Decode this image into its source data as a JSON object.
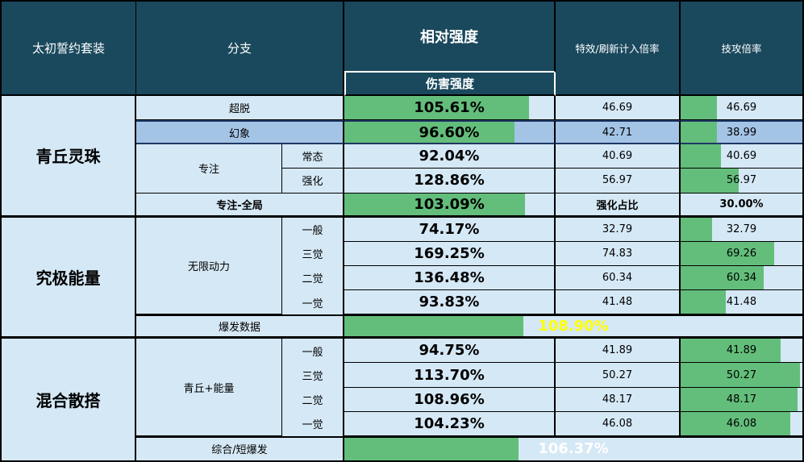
{
  "colors": {
    "header": "#1a495d",
    "light": "#d5e8f5",
    "medium": "#a4c4e6",
    "navy": "#1f3864",
    "green": "#63be7b",
    "value_yellow": "#ffff00",
    "value_white": "#ffffff"
  },
  "chart_data": {
    "type": "table",
    "header": {
      "set": "太初誓约套装",
      "branch": "分支",
      "relative": "相对强度",
      "damage": "伤害强度",
      "fx": "特效/刷新计入倍率",
      "atk": "技攻倍率"
    },
    "sections": [
      {
        "label": "青丘灵珠",
        "rows": [
          {
            "branch": "超脱",
            "rel": "105.61%",
            "rel_bar": 88,
            "fx": "46.69",
            "atk": "46.69",
            "atk_bar": 30
          },
          {
            "branch": "幻象",
            "rel": "96.60%",
            "rel_bar": 81,
            "fx": "42.71",
            "atk": "38.99",
            "atk_bar": 30,
            "highlight": true
          },
          {
            "branch": "专注",
            "sub": "常态",
            "rel": "92.04%",
            "fx": "40.69",
            "atk": "40.69",
            "atk_bar": 33
          },
          {
            "sub": "强化",
            "rel": "128.86%",
            "fx": "56.97",
            "atk": "56.97",
            "atk_bar": 48
          },
          {
            "branch": "专注-全局",
            "rel": "103.09%",
            "rel_bar": 86,
            "fx": "强化占比",
            "atk": "30.00%",
            "summary": true
          }
        ]
      },
      {
        "label": "究极能量",
        "branch": "无限动力",
        "rows": [
          {
            "sub": "一般",
            "rel": "74.17%",
            "fx": "32.79",
            "atk": "32.79",
            "atk_bar": 26
          },
          {
            "sub": "三觉",
            "rel": "169.25%",
            "fx": "74.83",
            "atk": "69.26",
            "atk_bar": 77
          },
          {
            "sub": "二觉",
            "rel": "136.48%",
            "fx": "60.34",
            "atk": "60.34",
            "atk_bar": 68
          },
          {
            "sub": "一觉",
            "rel": "93.83%",
            "fx": "41.48",
            "atk": "41.48",
            "atk_bar": 37
          },
          {
            "branch": "爆发数据",
            "rel": "108.90%",
            "rel_bar": 39,
            "burst": true
          }
        ]
      },
      {
        "label": "混合散搭",
        "branch": "青丘+能量",
        "rows": [
          {
            "sub": "一般",
            "rel": "94.75%",
            "fx": "41.89",
            "atk": "41.89",
            "atk_bar": 82
          },
          {
            "sub": "三觉",
            "rel": "113.70%",
            "fx": "50.27",
            "atk": "50.27",
            "atk_bar": 98
          },
          {
            "sub": "二觉",
            "rel": "108.96%",
            "fx": "48.17",
            "atk": "48.17",
            "atk_bar": 96
          },
          {
            "sub": "一觉",
            "rel": "104.23%",
            "fx": "46.08",
            "atk": "46.08",
            "atk_bar": 90
          },
          {
            "branch": "综合/短爆发",
            "rel": "106.37%",
            "rel_bar": 38,
            "burst": true
          }
        ]
      }
    ]
  }
}
